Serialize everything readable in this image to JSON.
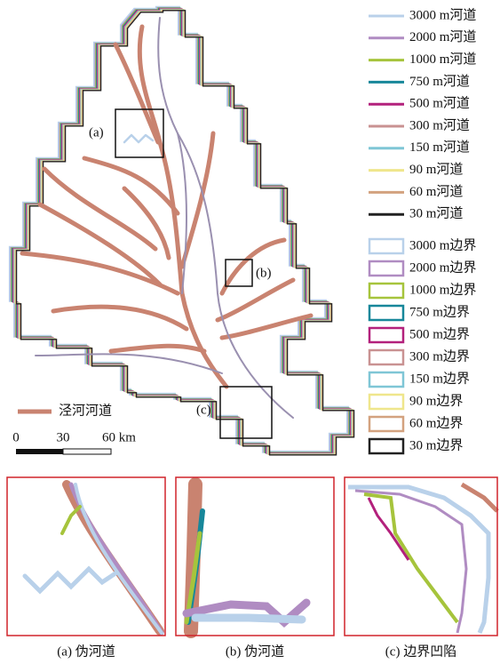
{
  "legend": {
    "rivers": [
      {
        "label": "3000 m河道",
        "color": "#b9d1ea"
      },
      {
        "label": "2000 m河道",
        "color": "#b08cc2"
      },
      {
        "label": "1000 m河道",
        "color": "#a6c43c"
      },
      {
        "label": "750 m河道",
        "color": "#17879a"
      },
      {
        "label": "500 m河道",
        "color": "#b3217c"
      },
      {
        "label": "300 m河道",
        "color": "#c99292"
      },
      {
        "label": "150 m河道",
        "color": "#7fc6d6"
      },
      {
        "label": "90 m河道",
        "color": "#efe68c"
      },
      {
        "label": "60 m河道",
        "color": "#d3a27f"
      },
      {
        "label": "30 m河道",
        "color": "#222222"
      }
    ],
    "boundaries": [
      {
        "label": "3000 m边界",
        "color": "#b9d1ea"
      },
      {
        "label": "2000 m边界",
        "color": "#b08cc2"
      },
      {
        "label": "1000 m边界",
        "color": "#a6c43c"
      },
      {
        "label": "750 m边界",
        "color": "#17879a"
      },
      {
        "label": "500 m边界",
        "color": "#b3217c"
      },
      {
        "label": "300 m边界",
        "color": "#c99292"
      },
      {
        "label": "150 m边界",
        "color": "#7fc6d6"
      },
      {
        "label": "90 m边界",
        "color": "#efe68c"
      },
      {
        "label": "60 m边界",
        "color": "#d3a27f"
      },
      {
        "label": "30 m边界",
        "color": "#222222"
      }
    ],
    "main_river": {
      "label": "泾河河道",
      "color": "#c98370"
    }
  },
  "map_labels": {
    "a": "(a)",
    "b": "(b)",
    "c": "(c)"
  },
  "scale_bar": {
    "labels": [
      "0",
      "30",
      "60 km"
    ]
  },
  "panels": [
    {
      "caption": "(a) 伪河道"
    },
    {
      "caption": "(b) 伪河道"
    },
    {
      "caption": "(c) 边界凹陷"
    }
  ]
}
